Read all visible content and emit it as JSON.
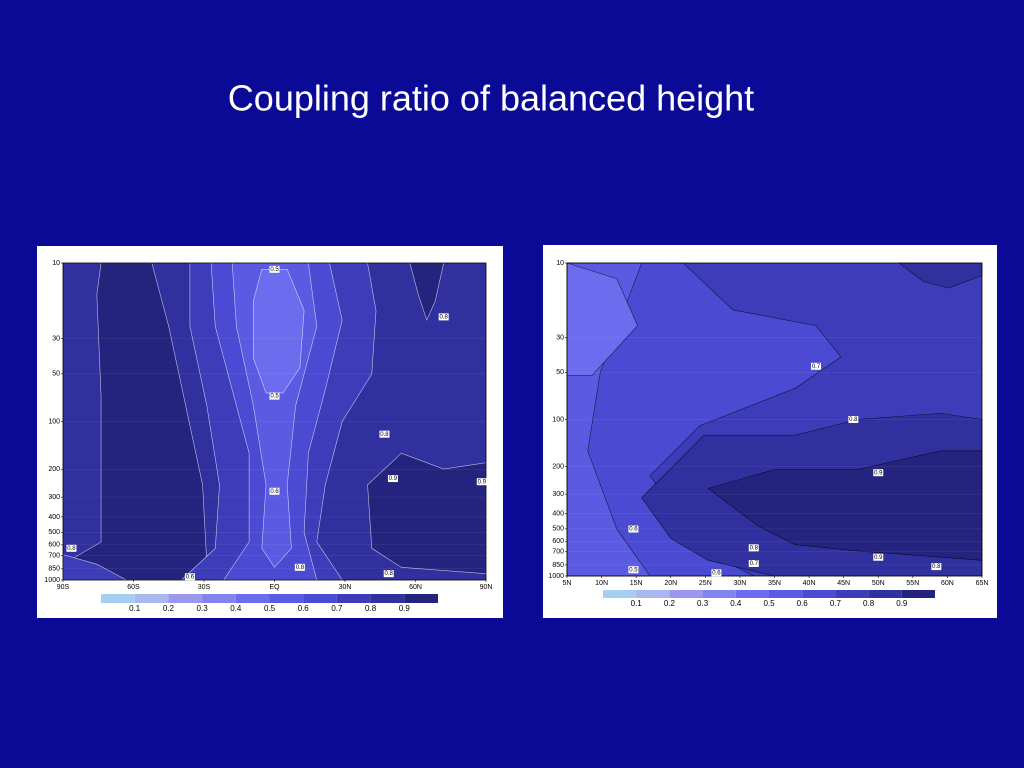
{
  "title": "Coupling ratio of balanced height",
  "chart_data": [
    {
      "type": "contour",
      "y_scale": "log",
      "grid": true,
      "contour_line_color": "#ffffff",
      "xlim": [
        -90,
        90
      ],
      "xticks": [
        {
          "value": -90,
          "label": "90S"
        },
        {
          "value": -60,
          "label": "60S"
        },
        {
          "value": -30,
          "label": "30S"
        },
        {
          "value": 0,
          "label": "EQ"
        },
        {
          "value": 30,
          "label": "30N"
        },
        {
          "value": 60,
          "label": "60N"
        },
        {
          "value": 90,
          "label": "90N"
        }
      ],
      "ylim": [
        1000,
        10
      ],
      "yticks": [
        10,
        30,
        50,
        100,
        200,
        300,
        400,
        500,
        600,
        700,
        850,
        1000
      ],
      "colorbar": {
        "levels": [
          0.1,
          0.2,
          0.3,
          0.4,
          0.5,
          0.6,
          0.7,
          0.8,
          0.9
        ],
        "colors": [
          "#a6cdf2",
          "#a9b7f0",
          "#9a98ee",
          "#8383ee",
          "#6c6cee",
          "#5a5ae2",
          "#4a4ad2",
          "#3d3dba",
          "#30309e",
          "#24247e"
        ]
      },
      "contour_labels": [
        0.5,
        0.8,
        0.5,
        0.8,
        0.6,
        0.9,
        0.9,
        0.8,
        0.6,
        0.8,
        0.8
      ]
    },
    {
      "type": "contour",
      "y_scale": "log",
      "grid": true,
      "contour_line_color": "#000000",
      "xlim": [
        5,
        65
      ],
      "xticks": [
        {
          "value": 5,
          "label": "5N"
        },
        {
          "value": 10,
          "label": "10N"
        },
        {
          "value": 15,
          "label": "15N"
        },
        {
          "value": 20,
          "label": "20N"
        },
        {
          "value": 25,
          "label": "25N"
        },
        {
          "value": 30,
          "label": "30N"
        },
        {
          "value": 35,
          "label": "35N"
        },
        {
          "value": 40,
          "label": "40N"
        },
        {
          "value": 45,
          "label": "45N"
        },
        {
          "value": 50,
          "label": "50N"
        },
        {
          "value": 55,
          "label": "55N"
        },
        {
          "value": 60,
          "label": "60N"
        },
        {
          "value": 65,
          "label": "65N"
        }
      ],
      "ylim": [
        1000,
        10
      ],
      "yticks": [
        10,
        30,
        50,
        100,
        200,
        300,
        400,
        500,
        600,
        700,
        850,
        1000
      ],
      "colorbar": {
        "levels": [
          0.1,
          0.2,
          0.3,
          0.4,
          0.5,
          0.6,
          0.7,
          0.8,
          0.9
        ],
        "colors": [
          "#a6cdf2",
          "#a9b7f0",
          "#9a98ee",
          "#8383ee",
          "#6c6cee",
          "#5a5ae2",
          "#4a4ad2",
          "#3d3dba",
          "#30309e",
          "#24247e"
        ]
      },
      "contour_labels": [
        0.7,
        0.8,
        0.9,
        0.6,
        0.8,
        0.7,
        0.9,
        0.5,
        0.6,
        0.8
      ]
    }
  ]
}
